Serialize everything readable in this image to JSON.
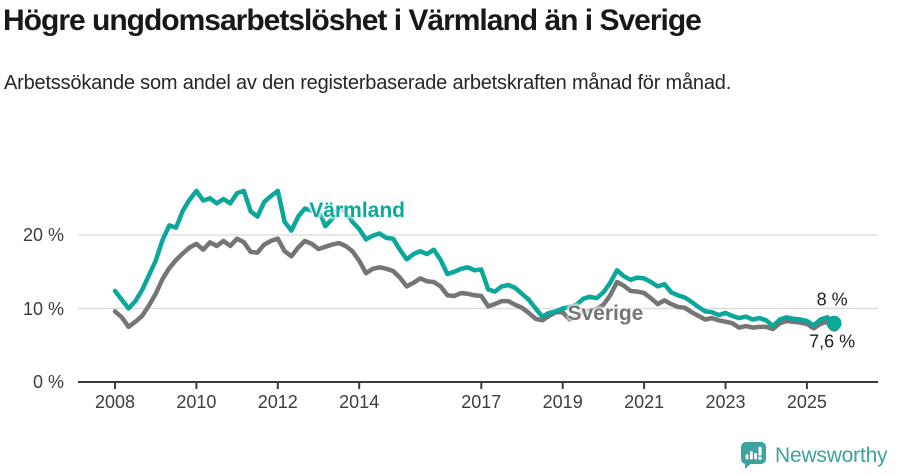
{
  "header": {
    "title": "Högre ungdomsarbetslöshet i Värmland än i Sverige",
    "subtitle": "Arbetssökande som andel av den registerbaserade arbetskraften månad för månad."
  },
  "chart_data": {
    "type": "line",
    "title": "Högre ungdomsarbetslöshet i Värmland än i Sverige",
    "subtitle": "Arbetssökande som andel av den registerbaserade arbetskraften månad för månad.",
    "unit": "%",
    "resolution": "monthly data sampled every 2nd month",
    "x_start": 2008.0,
    "x_step_years": 0.16667,
    "ylim": [
      0,
      27.5
    ],
    "grid": "horizontal-only",
    "legend_position": "inline-labels",
    "y_ticks": [
      {
        "value": 0,
        "label": "0 %"
      },
      {
        "value": 10,
        "label": "10 %"
      },
      {
        "value": 20,
        "label": "20 %"
      }
    ],
    "x_ticks": [
      {
        "year": 2008,
        "label": "2008"
      },
      {
        "year": 2010,
        "label": "2010"
      },
      {
        "year": 2012,
        "label": "2012"
      },
      {
        "year": 2014,
        "label": "2014"
      },
      {
        "year": 2017,
        "label": "2017"
      },
      {
        "year": 2019,
        "label": "2019"
      },
      {
        "year": 2021,
        "label": "2021"
      },
      {
        "year": 2023,
        "label": "2023"
      },
      {
        "year": 2025,
        "label": "2025"
      }
    ],
    "series": [
      {
        "name": "Sverige",
        "color": "#757575",
        "end_dot_r": 5.5,
        "last_value_label": "7,6 %",
        "values": [
          9.6,
          8.8,
          7.5,
          8.2,
          9.0,
          10.4,
          12.0,
          14.0,
          15.5,
          16.6,
          17.5,
          18.3,
          18.8,
          18.0,
          19.0,
          18.5,
          19.2,
          18.5,
          19.5,
          19.0,
          17.7,
          17.6,
          18.7,
          19.2,
          19.5,
          17.8,
          17.1,
          18.3,
          19.2,
          18.8,
          18.1,
          18.4,
          18.7,
          18.9,
          18.5,
          17.8,
          16.5,
          14.8,
          15.4,
          15.6,
          15.4,
          15.1,
          14.2,
          13.0,
          13.5,
          14.1,
          13.7,
          13.6,
          13.0,
          11.8,
          11.7,
          12.1,
          12.0,
          11.8,
          11.7,
          10.3,
          10.6,
          11.0,
          11.0,
          10.5,
          10.1,
          9.4,
          8.6,
          8.4,
          9.0,
          9.5,
          9.5,
          8.5,
          8.9,
          9.5,
          9.7,
          9.9,
          10.5,
          11.8,
          13.6,
          13.1,
          12.4,
          12.3,
          12.1,
          11.4,
          10.6,
          11.1,
          10.6,
          10.2,
          10.1,
          9.5,
          9.0,
          8.5,
          8.7,
          8.4,
          8.2,
          8.0,
          7.4,
          7.6,
          7.4,
          7.5,
          7.5,
          7.2,
          8.0,
          8.3,
          8.2,
          8.1,
          7.9,
          7.3,
          7.9,
          8.2,
          7.6
        ]
      },
      {
        "name": "Värmland",
        "color": "#0ba79b",
        "end_dot_r": 7.5,
        "last_value_label": "8 %",
        "values": [
          12.4,
          11.2,
          10.0,
          11.0,
          12.5,
          14.5,
          16.5,
          19.3,
          21.3,
          21.0,
          23.3,
          24.8,
          26.0,
          24.7,
          25.0,
          24.3,
          24.9,
          24.3,
          25.7,
          26.0,
          23.2,
          22.5,
          24.5,
          25.3,
          26.0,
          21.8,
          20.6,
          22.5,
          23.6,
          23.3,
          23.5,
          21.2,
          22.2,
          23.8,
          23.2,
          21.8,
          20.8,
          19.4,
          19.9,
          20.2,
          19.6,
          19.5,
          18.0,
          16.7,
          17.4,
          17.8,
          17.4,
          18.0,
          16.6,
          14.7,
          15.0,
          15.4,
          15.6,
          15.2,
          15.3,
          12.6,
          12.3,
          13.0,
          13.2,
          12.8,
          12.0,
          11.2,
          10.0,
          8.9,
          9.4,
          9.6,
          10.0,
          10.2,
          10.5,
          11.3,
          11.6,
          11.4,
          12.2,
          13.5,
          15.2,
          14.4,
          13.9,
          14.2,
          14.1,
          13.6,
          13.0,
          13.3,
          12.2,
          11.8,
          11.5,
          10.9,
          10.2,
          9.6,
          9.5,
          9.1,
          9.4,
          9.0,
          8.7,
          8.9,
          8.5,
          8.7,
          8.4,
          7.6,
          8.5,
          8.8,
          8.6,
          8.5,
          8.3,
          7.7,
          8.5,
          8.8,
          8.0
        ]
      }
    ],
    "annotations": [
      {
        "text": "Värmland",
        "x": 2013.95,
        "y": 23.2,
        "color": "#0ba79b",
        "kind": "series"
      },
      {
        "text": "Sverige",
        "x": 2020.05,
        "y": 9.3,
        "color": "#757575",
        "kind": "series"
      },
      {
        "text": "8 %",
        "x": 2025.62,
        "y": 11.2,
        "color": "#1f1f1f",
        "kind": "value"
      },
      {
        "text": "7,6 %",
        "x": 2025.62,
        "y": 5.4,
        "color": "#1f1f1f",
        "kind": "value"
      }
    ],
    "colors": {
      "grid": "#dadada",
      "axis": "#3b3b3b",
      "tick_text": "#3d3d3d"
    }
  },
  "footer": {
    "brand": "Newsworthy",
    "brand_color": "#3ba49f"
  }
}
